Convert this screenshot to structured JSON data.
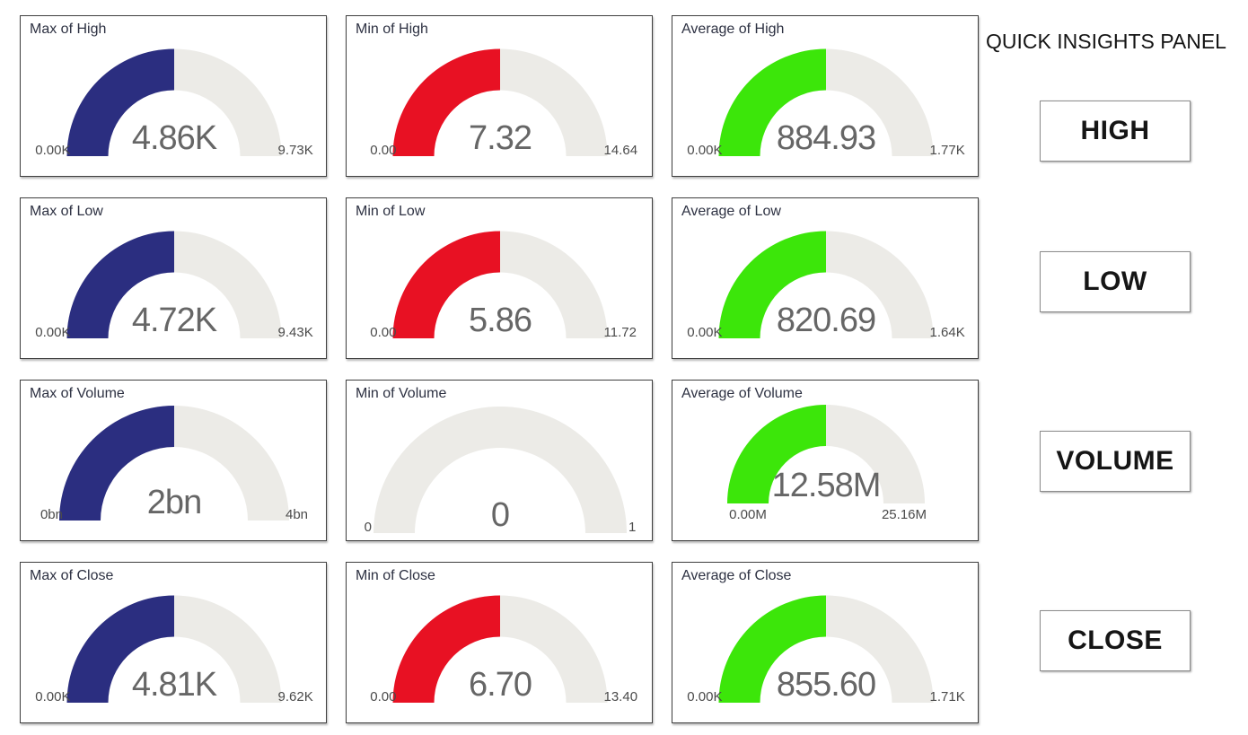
{
  "panel": {
    "title": "QUICK INSIGHTS PANEL",
    "buttons": [
      {
        "id": "high",
        "label": "HIGH"
      },
      {
        "id": "low",
        "label": "LOW"
      },
      {
        "id": "volume",
        "label": "VOLUME"
      },
      {
        "id": "close",
        "label": "CLOSE"
      }
    ]
  },
  "colors": {
    "fill_navy": "#2B2E80",
    "fill_red": "#E81123",
    "fill_green": "#3CE60A",
    "track": "#ECEBE7",
    "value_text": "#666666",
    "tick_text": "#4A4A4A",
    "title_text": "#2D3142"
  },
  "chart_data": [
    {
      "type": "gauge",
      "id": "max-of-high",
      "title": "Max of High",
      "value": 4860,
      "value_label": "4.86K",
      "min": 0,
      "min_label": "0.00K",
      "max": 9730,
      "max_label": "9.73K",
      "fraction": 0.5,
      "fill": "navy",
      "label_placement": "side"
    },
    {
      "type": "gauge",
      "id": "min-of-high",
      "title": "Min of High",
      "value": 7.32,
      "value_label": "7.32",
      "min": 0,
      "min_label": "0.00",
      "max": 14.64,
      "max_label": "14.64",
      "fraction": 0.5,
      "fill": "red",
      "label_placement": "side"
    },
    {
      "type": "gauge",
      "id": "average-of-high",
      "title": "Average of High",
      "value": 884.93,
      "value_label": "884.93",
      "min": 0,
      "min_label": "0.00K",
      "max": 1770,
      "max_label": "1.77K",
      "fraction": 0.5,
      "fill": "green",
      "label_placement": "side"
    },
    {
      "type": "gauge",
      "id": "max-of-low",
      "title": "Max of Low",
      "value": 4720,
      "value_label": "4.72K",
      "min": 0,
      "min_label": "0.00K",
      "max": 9430,
      "max_label": "9.43K",
      "fraction": 0.5,
      "fill": "navy",
      "label_placement": "side"
    },
    {
      "type": "gauge",
      "id": "min-of-low",
      "title": "Min of Low",
      "value": 5.86,
      "value_label": "5.86",
      "min": 0,
      "min_label": "0.00",
      "max": 11.72,
      "max_label": "11.72",
      "fraction": 0.5,
      "fill": "red",
      "label_placement": "side"
    },
    {
      "type": "gauge",
      "id": "average-of-low",
      "title": "Average of Low",
      "value": 820.69,
      "value_label": "820.69",
      "min": 0,
      "min_label": "0.00K",
      "max": 1640,
      "max_label": "1.64K",
      "fraction": 0.5,
      "fill": "green",
      "label_placement": "side"
    },
    {
      "type": "gauge",
      "id": "max-of-volume",
      "title": "Max of Volume",
      "value": 2000000000,
      "value_label": "2bn",
      "min": 0,
      "min_label": "0bn",
      "max": 4000000000,
      "max_label": "4bn",
      "fraction": 0.5,
      "fill": "navy",
      "label_placement": "side"
    },
    {
      "type": "gauge",
      "id": "min-of-volume",
      "title": "Min of Volume",
      "value": 0,
      "value_label": "0",
      "min": 0,
      "min_label": "0",
      "max": 1,
      "max_label": "1",
      "fraction": 0,
      "fill": "none",
      "label_placement": "side-wide"
    },
    {
      "type": "gauge",
      "id": "average-of-volume",
      "title": "Average of Volume",
      "value": 12580000,
      "value_label": "12.58M",
      "min": 0,
      "min_label": "0.00M",
      "max": 25160000,
      "max_label": "25.16M",
      "fraction": 0.5,
      "fill": "green",
      "label_placement": "below"
    },
    {
      "type": "gauge",
      "id": "max-of-close",
      "title": "Max of Close",
      "value": 4810,
      "value_label": "4.81K",
      "min": 0,
      "min_label": "0.00K",
      "max": 9620,
      "max_label": "9.62K",
      "fraction": 0.5,
      "fill": "navy",
      "label_placement": "side"
    },
    {
      "type": "gauge",
      "id": "min-of-close",
      "title": "Min of Close",
      "value": 6.7,
      "value_label": "6.70",
      "min": 0,
      "min_label": "0.00",
      "max": 13.4,
      "max_label": "13.40",
      "fraction": 0.5,
      "fill": "red",
      "label_placement": "side"
    },
    {
      "type": "gauge",
      "id": "average-of-close",
      "title": "Average of Close",
      "value": 855.6,
      "value_label": "855.60",
      "min": 0,
      "min_label": "0.00K",
      "max": 1710,
      "max_label": "1.71K",
      "fraction": 0.5,
      "fill": "green",
      "label_placement": "side"
    }
  ]
}
